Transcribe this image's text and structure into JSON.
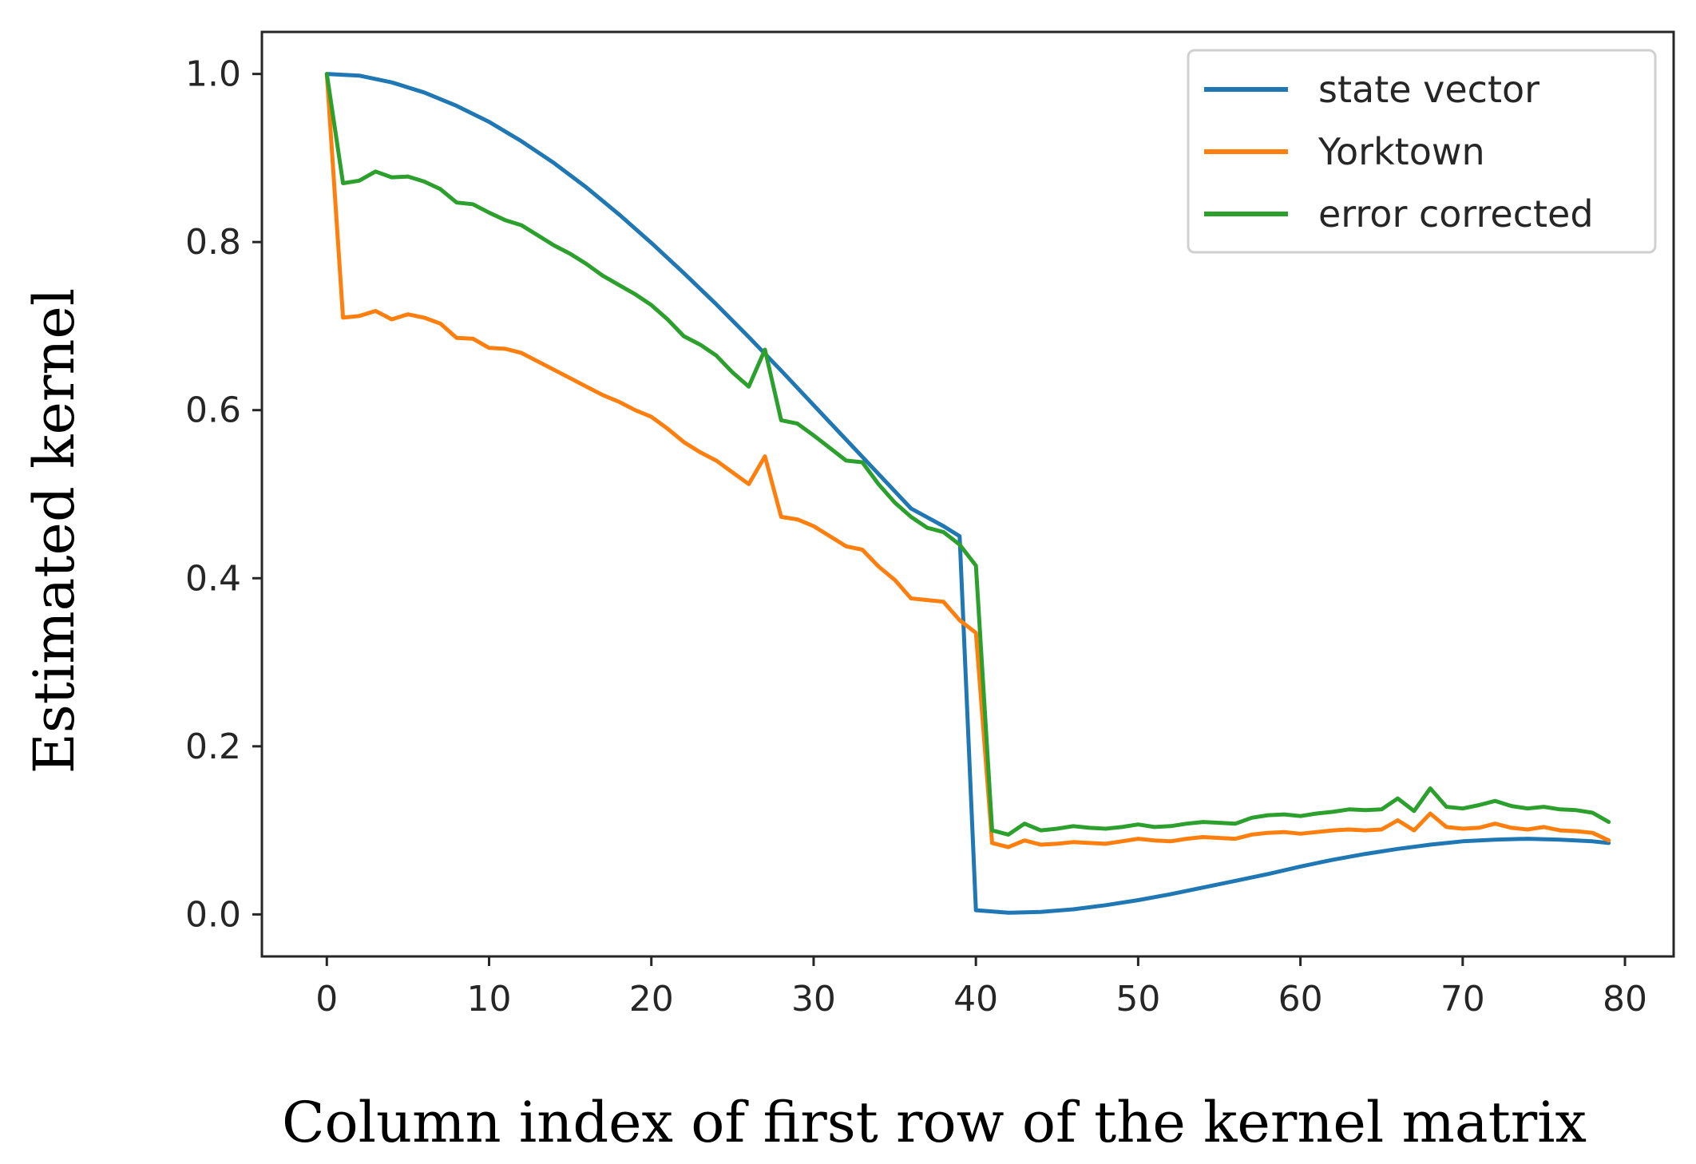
{
  "chart_data": {
    "type": "line",
    "xlabel": "Column index of first row of the kernel matrix",
    "ylabel": "Estimated kernel",
    "xlim": [
      -4,
      83
    ],
    "ylim": [
      -0.05,
      1.05
    ],
    "xticks": [
      0,
      10,
      20,
      30,
      40,
      50,
      60,
      70,
      80
    ],
    "xtick_labels": [
      "0",
      "10",
      "20",
      "30",
      "40",
      "50",
      "60",
      "70",
      "80"
    ],
    "yticks": [
      0.0,
      0.2,
      0.4,
      0.6,
      0.8,
      1.0
    ],
    "ytick_labels": [
      "0.0",
      "0.2",
      "0.4",
      "0.6",
      "0.8",
      "1.0"
    ],
    "grid": false,
    "legend_position": "top-right",
    "series": [
      {
        "name": "state vector",
        "color": "#1f77b4",
        "x": [
          0,
          2,
          4,
          6,
          8,
          10,
          12,
          14,
          16,
          18,
          20,
          22,
          24,
          26,
          28,
          30,
          32,
          34,
          36,
          38,
          39,
          40,
          42,
          44,
          46,
          48,
          50,
          52,
          54,
          56,
          58,
          60,
          62,
          64,
          66,
          68,
          70,
          72,
          74,
          76,
          78,
          79
        ],
        "y": [
          1.0,
          0.998,
          0.99,
          0.978,
          0.962,
          0.943,
          0.92,
          0.894,
          0.865,
          0.833,
          0.799,
          0.763,
          0.726,
          0.687,
          0.647,
          0.606,
          0.565,
          0.524,
          0.483,
          0.462,
          0.45,
          0.005,
          0.002,
          0.003,
          0.006,
          0.011,
          0.017,
          0.024,
          0.032,
          0.04,
          0.048,
          0.057,
          0.065,
          0.072,
          0.078,
          0.083,
          0.087,
          0.089,
          0.09,
          0.089,
          0.087,
          0.085
        ]
      },
      {
        "name": "Yorktown",
        "color": "#ff7f0e",
        "x": [
          0,
          1,
          2,
          3,
          4,
          5,
          6,
          7,
          8,
          9,
          10,
          11,
          12,
          13,
          14,
          15,
          16,
          17,
          18,
          19,
          20,
          21,
          22,
          23,
          24,
          25,
          26,
          27,
          28,
          29,
          30,
          31,
          32,
          33,
          34,
          35,
          36,
          37,
          38,
          39,
          40,
          41,
          42,
          43,
          44,
          45,
          46,
          47,
          48,
          49,
          50,
          51,
          52,
          53,
          54,
          55,
          56,
          57,
          58,
          59,
          60,
          61,
          62,
          63,
          64,
          65,
          66,
          67,
          68,
          69,
          70,
          71,
          72,
          73,
          74,
          75,
          76,
          77,
          78,
          79
        ],
        "y": [
          1.0,
          0.71,
          0.712,
          0.718,
          0.708,
          0.714,
          0.71,
          0.703,
          0.686,
          0.685,
          0.674,
          0.673,
          0.668,
          0.658,
          0.648,
          0.638,
          0.628,
          0.618,
          0.61,
          0.6,
          0.592,
          0.578,
          0.562,
          0.55,
          0.54,
          0.526,
          0.512,
          0.545,
          0.473,
          0.47,
          0.462,
          0.45,
          0.438,
          0.434,
          0.414,
          0.398,
          0.376,
          0.374,
          0.372,
          0.35,
          0.335,
          0.085,
          0.08,
          0.088,
          0.083,
          0.084,
          0.086,
          0.085,
          0.084,
          0.087,
          0.09,
          0.088,
          0.087,
          0.09,
          0.092,
          0.091,
          0.09,
          0.095,
          0.097,
          0.098,
          0.096,
          0.098,
          0.1,
          0.101,
          0.1,
          0.101,
          0.112,
          0.1,
          0.12,
          0.104,
          0.102,
          0.103,
          0.108,
          0.103,
          0.101,
          0.104,
          0.1,
          0.099,
          0.097,
          0.088
        ]
      },
      {
        "name": "error corrected",
        "color": "#2ca02c",
        "x": [
          0,
          1,
          2,
          3,
          4,
          5,
          6,
          7,
          8,
          9,
          10,
          11,
          12,
          13,
          14,
          15,
          16,
          17,
          18,
          19,
          20,
          21,
          22,
          23,
          24,
          25,
          26,
          27,
          28,
          29,
          30,
          31,
          32,
          33,
          34,
          35,
          36,
          37,
          38,
          39,
          40,
          41,
          42,
          43,
          44,
          45,
          46,
          47,
          48,
          49,
          50,
          51,
          52,
          53,
          54,
          55,
          56,
          57,
          58,
          59,
          60,
          61,
          62,
          63,
          64,
          65,
          66,
          67,
          68,
          69,
          70,
          71,
          72,
          73,
          74,
          75,
          76,
          77,
          78,
          79
        ],
        "y": [
          1.0,
          0.87,
          0.873,
          0.884,
          0.877,
          0.878,
          0.872,
          0.863,
          0.847,
          0.845,
          0.835,
          0.826,
          0.82,
          0.808,
          0.796,
          0.786,
          0.774,
          0.76,
          0.749,
          0.738,
          0.725,
          0.708,
          0.688,
          0.678,
          0.665,
          0.645,
          0.628,
          0.672,
          0.588,
          0.584,
          0.57,
          0.555,
          0.54,
          0.538,
          0.512,
          0.49,
          0.473,
          0.46,
          0.455,
          0.44,
          0.415,
          0.1,
          0.095,
          0.108,
          0.1,
          0.102,
          0.105,
          0.103,
          0.102,
          0.104,
          0.107,
          0.104,
          0.105,
          0.108,
          0.11,
          0.109,
          0.108,
          0.115,
          0.118,
          0.119,
          0.117,
          0.12,
          0.122,
          0.125,
          0.124,
          0.125,
          0.138,
          0.123,
          0.15,
          0.128,
          0.126,
          0.13,
          0.135,
          0.129,
          0.126,
          0.128,
          0.125,
          0.124,
          0.121,
          0.11
        ]
      }
    ]
  }
}
